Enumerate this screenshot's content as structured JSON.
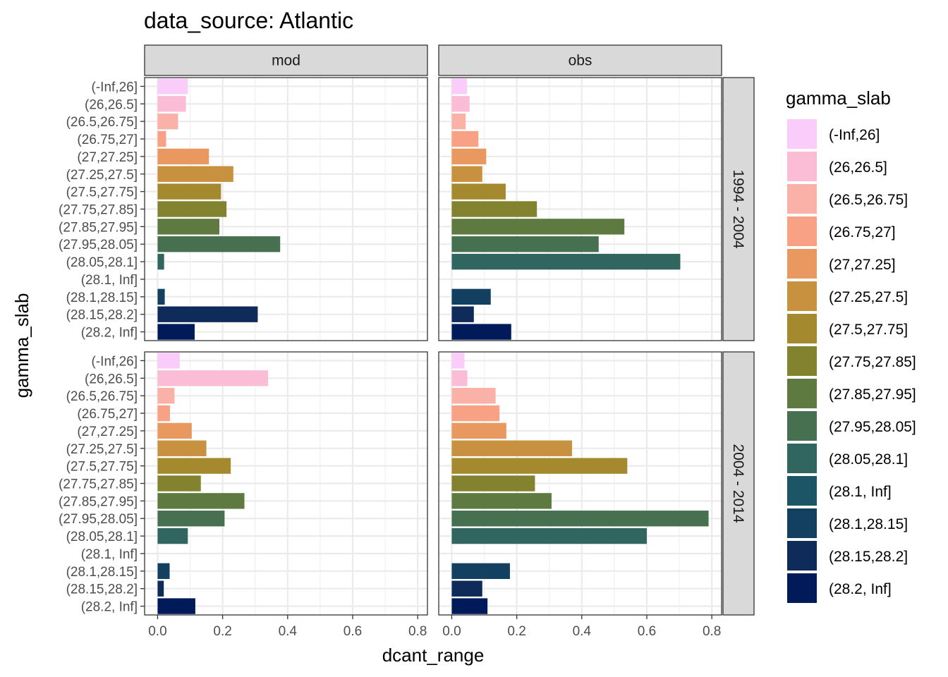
{
  "chart_data": {
    "type": "bar",
    "title": "data_source: Atlantic",
    "xlabel": "dcant_range",
    "ylabel": "gamma_slab",
    "xlim": [
      -0.04,
      0.83
    ],
    "x_ticks": [
      0.0,
      0.2,
      0.4,
      0.6,
      0.8
    ],
    "x_tick_labels": [
      "0.0",
      "0.2",
      "0.4",
      "0.6",
      "0.8"
    ],
    "grid": true,
    "legend_position": "right",
    "legend_title": "gamma_slab",
    "categories": [
      "(-Inf,26]",
      "(26,26.5]",
      "(26.5,26.75]",
      "(26.75,27]",
      "(27,27.25]",
      "(27.25,27.5]",
      "(27.5,27.75]",
      "(27.75,27.85]",
      "(27.85,27.95]",
      "(27.95,28.05]",
      "(28.05,28.1]",
      "(28.1, Inf]",
      "(28.1,28.15]",
      "(28.15,28.2]",
      "(28.2, Inf]"
    ],
    "legend_categories": [
      "(-Inf,26]",
      "(26,26.5]",
      "(26.5,26.75]",
      "(26.75,27]",
      "(27,27.25]",
      "(27.25,27.5]",
      "(27.5,27.75]",
      "(27.75,27.85]",
      "(27.85,27.95]",
      "(27.95,28.05]",
      "(28.05,28.1]",
      "(28.1, Inf]",
      "(28.1,28.15]",
      "(28.15,28.2]",
      "(28.2, Inf]"
    ],
    "colors": [
      "#F9CCF9",
      "#FBBDD6",
      "#FAB1A8",
      "#F8A184",
      "#E9995F",
      "#C8913F",
      "#A5892F",
      "#83832F",
      "#5F7A40",
      "#467050",
      "#30665F",
      "#1C5566",
      "#133F61",
      "#0E2B5A",
      "#001A5A"
    ],
    "columns": [
      "mod",
      "obs"
    ],
    "rows": [
      "1994 - 2004",
      "2004 - 2014"
    ],
    "panels": [
      {
        "column": "mod",
        "row": "1994 - 2004",
        "values": [
          0.093,
          0.087,
          0.063,
          0.026,
          0.158,
          0.233,
          0.195,
          0.212,
          0.19,
          0.377,
          0.02,
          null,
          0.022,
          0.308,
          0.114
        ]
      },
      {
        "column": "obs",
        "row": "1994 - 2004",
        "values": [
          0.047,
          0.055,
          0.043,
          0.082,
          0.106,
          0.094,
          0.166,
          0.262,
          0.531,
          0.452,
          0.703,
          null,
          0.12,
          0.068,
          0.183
        ]
      },
      {
        "column": "mod",
        "row": "2004 - 2014",
        "values": [
          0.068,
          0.34,
          0.052,
          0.038,
          0.105,
          0.15,
          0.225,
          0.133,
          0.267,
          0.206,
          0.093,
          null,
          0.037,
          0.019,
          0.116
        ]
      },
      {
        "column": "obs",
        "row": "2004 - 2014",
        "values": [
          0.039,
          0.048,
          0.135,
          0.147,
          0.168,
          0.37,
          0.54,
          0.256,
          0.307,
          0.79,
          0.6,
          null,
          0.179,
          0.094,
          0.11
        ]
      }
    ]
  }
}
